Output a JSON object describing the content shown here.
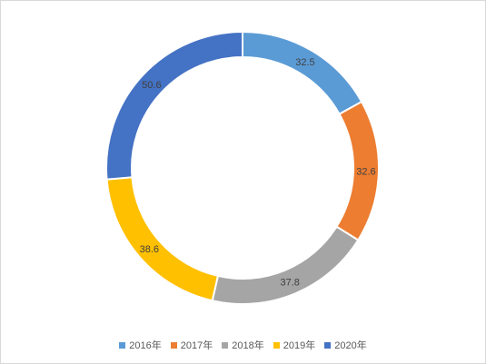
{
  "chart_data": {
    "type": "pie",
    "variant": "doughnut",
    "title": "",
    "categories": [
      "2016年",
      "2017年",
      "2018年",
      "2019年",
      "2020年"
    ],
    "values": [
      32.5,
      32.6,
      37.8,
      38.6,
      50.6
    ],
    "colors": [
      "#5b9bd5",
      "#ed7d31",
      "#a5a5a5",
      "#ffc000",
      "#4472c4"
    ],
    "data_labels": [
      "32.5",
      "32.6",
      "37.8",
      "38.6",
      "50.6"
    ],
    "legend_position": "bottom",
    "start_angle_deg": 0,
    "direction": "clockwise"
  }
}
